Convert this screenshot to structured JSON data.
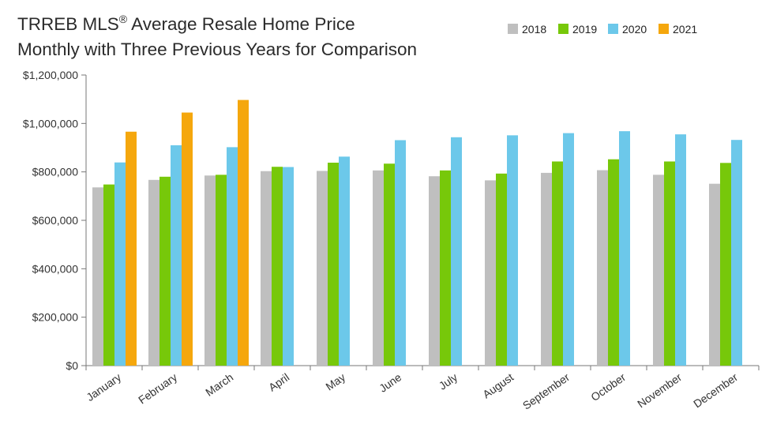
{
  "title": {
    "line1_prefix": "TRREB MLS",
    "line1_sup": "®",
    "line1_suffix": " Average Resale Home Price",
    "line2": "Monthly with Three Previous Years for Comparison"
  },
  "colors": {
    "2018": "#bfbfbf",
    "2019": "#77c80a",
    "2020": "#6cc8ea",
    "2021": "#f5a70d",
    "axis": "#777777"
  },
  "chart_data": {
    "type": "bar",
    "legend_position": "top-right",
    "grid": false,
    "ylim": [
      0,
      1200000
    ],
    "y_ticks": [
      0,
      200000,
      400000,
      600000,
      800000,
      1000000,
      1200000
    ],
    "y_tick_labels": [
      "$0",
      "$200,000",
      "$400,000",
      "$600,000",
      "$800,000",
      "$1,000,000",
      "$1,200,000"
    ],
    "categories": [
      "January",
      "February",
      "March",
      "April",
      "May",
      "June",
      "July",
      "August",
      "September",
      "October",
      "November",
      "December"
    ],
    "series": [
      {
        "name": "2018",
        "values": [
          736000,
          767000,
          785000,
          803000,
          804000,
          806000,
          782000,
          765000,
          796000,
          807000,
          788000,
          751000
        ]
      },
      {
        "name": "2019",
        "values": [
          748000,
          780000,
          788000,
          821000,
          838000,
          834000,
          806000,
          793000,
          843000,
          852000,
          843000,
          837000
        ]
      },
      {
        "name": "2020",
        "values": [
          839000,
          910000,
          902000,
          820000,
          863000,
          931000,
          943000,
          951000,
          960000,
          968000,
          955000,
          932000
        ]
      },
      {
        "name": "2021",
        "values": [
          966000,
          1045000,
          1097000,
          null,
          null,
          null,
          null,
          null,
          null,
          null,
          null,
          null
        ]
      }
    ]
  }
}
